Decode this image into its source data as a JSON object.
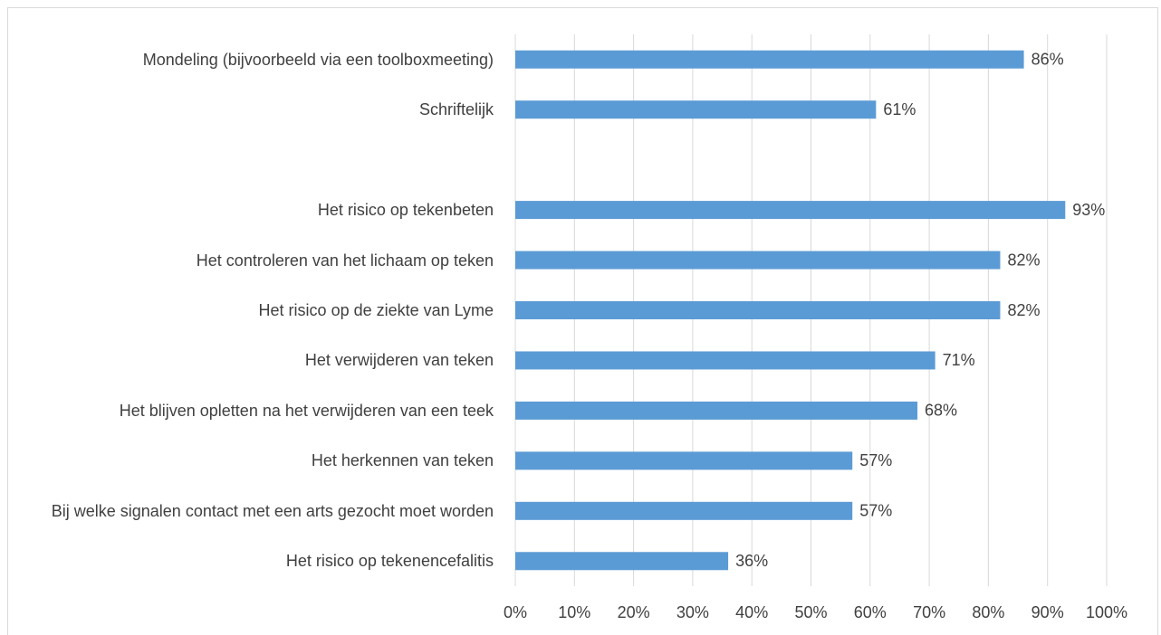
{
  "chart_data": {
    "type": "bar",
    "orientation": "horizontal",
    "categories": [
      "Mondeling (bijvoorbeeld via een toolboxmeeting)",
      "Schriftelijk",
      null,
      "Het risico op tekenbeten",
      "Het controleren van het lichaam op teken",
      "Het risico op de ziekte van Lyme",
      "Het verwijderen van teken",
      "Het blijven opletten na het verwijderen van een teek",
      "Het herkennen van teken",
      "Bij welke signalen contact met een arts gezocht moet worden",
      "Het risico op tekenencefalitis"
    ],
    "values": [
      86,
      61,
      null,
      93,
      82,
      82,
      71,
      68,
      57,
      57,
      36
    ],
    "value_labels": [
      "86%",
      "61%",
      null,
      "93%",
      "82%",
      "82%",
      "71%",
      "68%",
      "57%",
      "57%",
      "36%"
    ],
    "color": "#5b9bd5",
    "xlim": [
      0,
      100
    ],
    "xticks": [
      {
        "value": 0,
        "label": "0%"
      },
      {
        "value": 10,
        "label": "10%"
      },
      {
        "value": 20,
        "label": "20%"
      },
      {
        "value": 30,
        "label": "30%"
      },
      {
        "value": 40,
        "label": "40%"
      },
      {
        "value": 50,
        "label": "50%"
      },
      {
        "value": 60,
        "label": "60%"
      },
      {
        "value": 70,
        "label": "70%"
      },
      {
        "value": 80,
        "label": "80%"
      },
      {
        "value": 90,
        "label": "90%"
      },
      {
        "value": 100,
        "label": "100%"
      }
    ],
    "grid": true
  }
}
